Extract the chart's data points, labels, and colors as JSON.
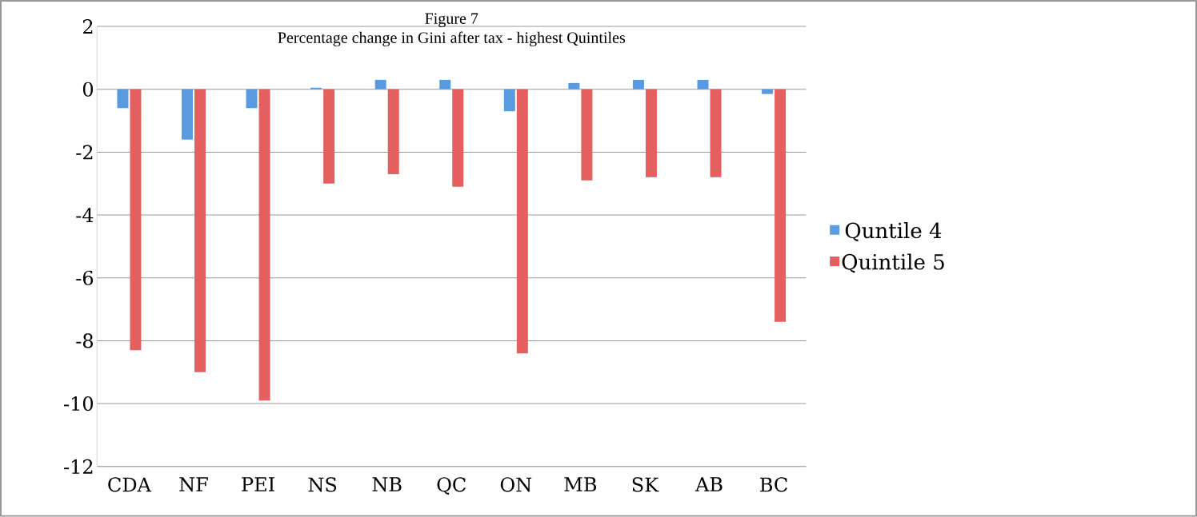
{
  "chart_data": {
    "type": "bar",
    "title": "Figure 7",
    "subtitle": "Percentage change in Gini after tax - highest Quintiles",
    "categories": [
      "CDA",
      "NF",
      "PEI",
      "NS",
      "NB",
      "QC",
      "ON",
      "MB",
      "SK",
      "AB",
      "BC"
    ],
    "series": [
      {
        "name": "Quntile 4",
        "color": "#5a9be0",
        "values": [
          -0.6,
          -1.6,
          -0.6,
          0.05,
          0.3,
          0.3,
          -0.7,
          0.2,
          0.3,
          0.3,
          -0.15
        ]
      },
      {
        "name": "Quintile 5",
        "color": "#e46060",
        "values": [
          -8.3,
          -9.0,
          -9.9,
          -3.0,
          -2.7,
          -3.1,
          -8.4,
          -2.9,
          -2.8,
          -2.8,
          -7.4
        ]
      }
    ],
    "ylim": [
      -12,
      2
    ],
    "yticks": [
      -12,
      -10,
      -8,
      -6,
      -4,
      -2,
      0,
      2
    ],
    "grid": "y",
    "legend": "right"
  }
}
